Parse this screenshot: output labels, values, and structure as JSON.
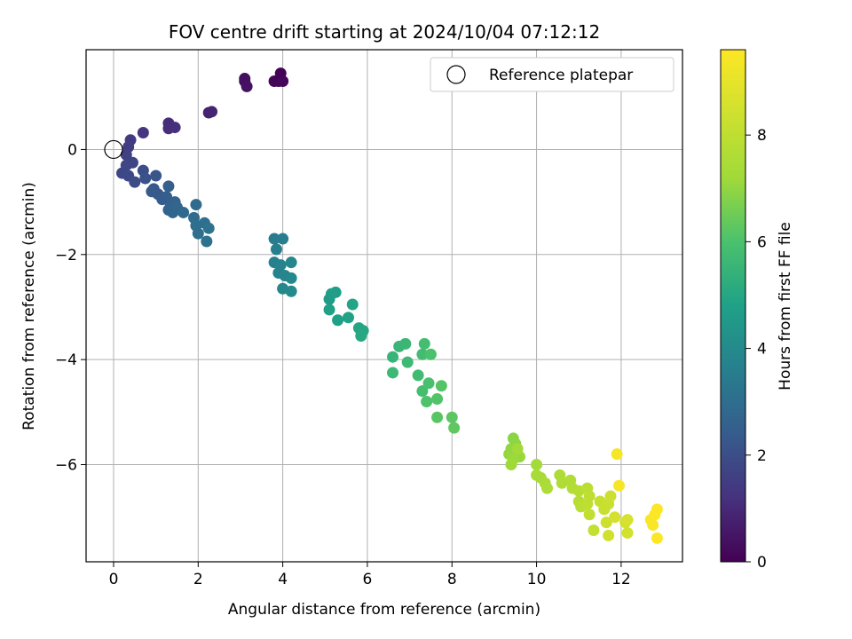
{
  "chart_data": {
    "type": "scatter",
    "title": "FOV centre drift starting at 2024/10/04 07:12:12",
    "xlabel": "Angular distance from reference (arcmin)",
    "ylabel": "Rotation from reference (arcmin)",
    "xlim": [
      -0.65,
      13.45
    ],
    "ylim": [
      -7.85,
      1.9
    ],
    "xticks": [
      0,
      2,
      4,
      6,
      8,
      10,
      12
    ],
    "yticks": [
      -6,
      -4,
      -2,
      0
    ],
    "grid": true,
    "legend": {
      "placement": "top-right",
      "entries": [
        "Reference platepar"
      ]
    },
    "reference_point": {
      "x": 0,
      "y": 0,
      "label": "Reference platepar"
    },
    "colorbar": {
      "label": "Hours from first FF file",
      "colormap": "viridis",
      "range": [
        0,
        9.6
      ],
      "ticks": [
        0,
        2,
        4,
        6,
        8
      ]
    },
    "points": [
      {
        "x": 3.1,
        "y": 1.3,
        "h": 0.3
      },
      {
        "x": 3.1,
        "y": 1.35,
        "h": 0.35
      },
      {
        "x": 3.15,
        "y": 1.2,
        "h": 0.4
      },
      {
        "x": 3.8,
        "y": 1.3,
        "h": 0.1
      },
      {
        "x": 3.9,
        "y": 1.3,
        "h": 0.1
      },
      {
        "x": 3.95,
        "y": 1.45,
        "h": 0.05
      },
      {
        "x": 4.0,
        "y": 1.3,
        "h": 0.15
      },
      {
        "x": 2.25,
        "y": 0.7,
        "h": 0.8
      },
      {
        "x": 2.32,
        "y": 0.72,
        "h": 0.85
      },
      {
        "x": 1.3,
        "y": 0.5,
        "h": 1.05
      },
      {
        "x": 1.3,
        "y": 0.4,
        "h": 1.1
      },
      {
        "x": 1.45,
        "y": 0.42,
        "h": 1.15
      },
      {
        "x": 0.7,
        "y": 0.32,
        "h": 1.3
      },
      {
        "x": 0.4,
        "y": 0.18,
        "h": 1.45
      },
      {
        "x": 0.35,
        "y": 0.05,
        "h": 1.5
      },
      {
        "x": 0.3,
        "y": -0.1,
        "h": 1.6
      },
      {
        "x": 0.45,
        "y": -0.25,
        "h": 1.7
      },
      {
        "x": 0.3,
        "y": -0.3,
        "h": 1.75
      },
      {
        "x": 0.2,
        "y": -0.45,
        "h": 1.8
      },
      {
        "x": 0.35,
        "y": -0.5,
        "h": 1.85
      },
      {
        "x": 0.5,
        "y": -0.62,
        "h": 1.9
      },
      {
        "x": 0.7,
        "y": -0.4,
        "h": 2.0
      },
      {
        "x": 0.75,
        "y": -0.55,
        "h": 2.1
      },
      {
        "x": 1.0,
        "y": -0.5,
        "h": 2.2
      },
      {
        "x": 0.95,
        "y": -0.75,
        "h": 2.25
      },
      {
        "x": 0.9,
        "y": -0.8,
        "h": 2.3
      },
      {
        "x": 1.05,
        "y": -0.85,
        "h": 2.35
      },
      {
        "x": 1.15,
        "y": -0.95,
        "h": 2.4
      },
      {
        "x": 1.25,
        "y": -0.9,
        "h": 2.45
      },
      {
        "x": 1.3,
        "y": -0.7,
        "h": 2.5
      },
      {
        "x": 1.35,
        "y": -1.05,
        "h": 2.55
      },
      {
        "x": 1.45,
        "y": -1.0,
        "h": 2.6
      },
      {
        "x": 1.3,
        "y": -1.15,
        "h": 2.65
      },
      {
        "x": 1.4,
        "y": -1.2,
        "h": 2.7
      },
      {
        "x": 1.5,
        "y": -1.1,
        "h": 2.75
      },
      {
        "x": 1.65,
        "y": -1.2,
        "h": 2.85
      },
      {
        "x": 1.95,
        "y": -1.05,
        "h": 2.9
      },
      {
        "x": 1.9,
        "y": -1.3,
        "h": 2.95
      },
      {
        "x": 1.95,
        "y": -1.45,
        "h": 3.0
      },
      {
        "x": 2.0,
        "y": -1.6,
        "h": 3.05
      },
      {
        "x": 2.15,
        "y": -1.4,
        "h": 3.1
      },
      {
        "x": 2.25,
        "y": -1.5,
        "h": 3.15
      },
      {
        "x": 2.2,
        "y": -1.75,
        "h": 3.2
      },
      {
        "x": 3.8,
        "y": -1.7,
        "h": 3.5
      },
      {
        "x": 4.0,
        "y": -1.7,
        "h": 3.55
      },
      {
        "x": 3.85,
        "y": -1.9,
        "h": 3.6
      },
      {
        "x": 3.8,
        "y": -2.15,
        "h": 3.65
      },
      {
        "x": 3.95,
        "y": -2.2,
        "h": 3.7
      },
      {
        "x": 3.9,
        "y": -2.35,
        "h": 3.75
      },
      {
        "x": 4.05,
        "y": -2.4,
        "h": 3.8
      },
      {
        "x": 4.2,
        "y": -2.15,
        "h": 3.85
      },
      {
        "x": 4.2,
        "y": -2.45,
        "h": 3.9
      },
      {
        "x": 4.0,
        "y": -2.65,
        "h": 3.95
      },
      {
        "x": 4.2,
        "y": -2.7,
        "h": 4.0
      },
      {
        "x": 5.1,
        "y": -2.85,
        "h": 4.6
      },
      {
        "x": 5.15,
        "y": -2.75,
        "h": 4.65
      },
      {
        "x": 5.25,
        "y": -2.72,
        "h": 4.7
      },
      {
        "x": 5.1,
        "y": -3.05,
        "h": 4.75
      },
      {
        "x": 5.3,
        "y": -3.25,
        "h": 4.8
      },
      {
        "x": 5.55,
        "y": -3.2,
        "h": 4.85
      },
      {
        "x": 5.65,
        "y": -2.95,
        "h": 4.9
      },
      {
        "x": 5.8,
        "y": -3.4,
        "h": 4.95
      },
      {
        "x": 5.9,
        "y": -3.45,
        "h": 5.0
      },
      {
        "x": 5.85,
        "y": -3.55,
        "h": 5.05
      },
      {
        "x": 6.6,
        "y": -3.95,
        "h": 5.5
      },
      {
        "x": 6.75,
        "y": -3.75,
        "h": 5.55
      },
      {
        "x": 6.9,
        "y": -3.7,
        "h": 5.6
      },
      {
        "x": 6.6,
        "y": -4.25,
        "h": 5.65
      },
      {
        "x": 6.95,
        "y": -4.05,
        "h": 5.7
      },
      {
        "x": 7.2,
        "y": -4.3,
        "h": 5.75
      },
      {
        "x": 7.3,
        "y": -3.9,
        "h": 5.8
      },
      {
        "x": 7.35,
        "y": -3.7,
        "h": 5.85
      },
      {
        "x": 7.3,
        "y": -4.6,
        "h": 5.9
      },
      {
        "x": 7.45,
        "y": -4.45,
        "h": 5.95
      },
      {
        "x": 7.5,
        "y": -3.9,
        "h": 6.0
      },
      {
        "x": 7.4,
        "y": -4.8,
        "h": 6.05
      },
      {
        "x": 7.65,
        "y": -4.75,
        "h": 6.1
      },
      {
        "x": 7.75,
        "y": -4.5,
        "h": 6.15
      },
      {
        "x": 7.65,
        "y": -5.1,
        "h": 6.2
      },
      {
        "x": 8.0,
        "y": -5.1,
        "h": 6.25
      },
      {
        "x": 8.05,
        "y": -5.3,
        "h": 6.3
      },
      {
        "x": 9.45,
        "y": -5.5,
        "h": 6.9
      },
      {
        "x": 9.5,
        "y": -5.6,
        "h": 6.95
      },
      {
        "x": 9.4,
        "y": -5.7,
        "h": 7.0
      },
      {
        "x": 9.35,
        "y": -5.8,
        "h": 7.05
      },
      {
        "x": 9.6,
        "y": -5.85,
        "h": 7.1
      },
      {
        "x": 9.45,
        "y": -5.9,
        "h": 7.15
      },
      {
        "x": 9.4,
        "y": -6.0,
        "h": 7.2
      },
      {
        "x": 9.55,
        "y": -5.7,
        "h": 7.25
      },
      {
        "x": 10.0,
        "y": -6.0,
        "h": 7.3
      },
      {
        "x": 10.0,
        "y": -6.2,
        "h": 7.35
      },
      {
        "x": 10.1,
        "y": -6.25,
        "h": 7.4
      },
      {
        "x": 10.2,
        "y": -6.35,
        "h": 7.45
      },
      {
        "x": 10.25,
        "y": -6.45,
        "h": 7.5
      },
      {
        "x": 10.55,
        "y": -6.2,
        "h": 7.55
      },
      {
        "x": 10.6,
        "y": -6.35,
        "h": 7.6
      },
      {
        "x": 10.8,
        "y": -6.3,
        "h": 7.65
      },
      {
        "x": 10.85,
        "y": -6.45,
        "h": 7.7
      },
      {
        "x": 11.0,
        "y": -6.5,
        "h": 7.75
      },
      {
        "x": 11.0,
        "y": -6.7,
        "h": 7.8
      },
      {
        "x": 11.05,
        "y": -6.8,
        "h": 7.85
      },
      {
        "x": 11.2,
        "y": -6.45,
        "h": 7.9
      },
      {
        "x": 11.25,
        "y": -6.6,
        "h": 7.95
      },
      {
        "x": 11.2,
        "y": -6.75,
        "h": 8.0
      },
      {
        "x": 11.25,
        "y": -6.95,
        "h": 8.05
      },
      {
        "x": 11.35,
        "y": -7.25,
        "h": 8.1
      },
      {
        "x": 11.5,
        "y": -6.7,
        "h": 8.15
      },
      {
        "x": 11.6,
        "y": -6.85,
        "h": 8.2
      },
      {
        "x": 11.7,
        "y": -6.75,
        "h": 8.25
      },
      {
        "x": 11.75,
        "y": -6.6,
        "h": 8.3
      },
      {
        "x": 11.65,
        "y": -7.1,
        "h": 8.35
      },
      {
        "x": 11.7,
        "y": -7.35,
        "h": 8.4
      },
      {
        "x": 12.1,
        "y": -7.1,
        "h": 8.45
      },
      {
        "x": 12.15,
        "y": -7.3,
        "h": 8.5
      },
      {
        "x": 11.85,
        "y": -7.0,
        "h": 8.55
      },
      {
        "x": 12.15,
        "y": -7.05,
        "h": 8.6
      },
      {
        "x": 11.9,
        "y": -5.8,
        "h": 9.4
      },
      {
        "x": 11.95,
        "y": -6.4,
        "h": 9.45
      },
      {
        "x": 12.7,
        "y": -7.05,
        "h": 9.5
      },
      {
        "x": 12.75,
        "y": -7.15,
        "h": 9.5
      },
      {
        "x": 12.8,
        "y": -6.95,
        "h": 9.55
      },
      {
        "x": 12.85,
        "y": -6.85,
        "h": 9.55
      },
      {
        "x": 12.85,
        "y": -7.4,
        "h": 9.6
      }
    ]
  }
}
